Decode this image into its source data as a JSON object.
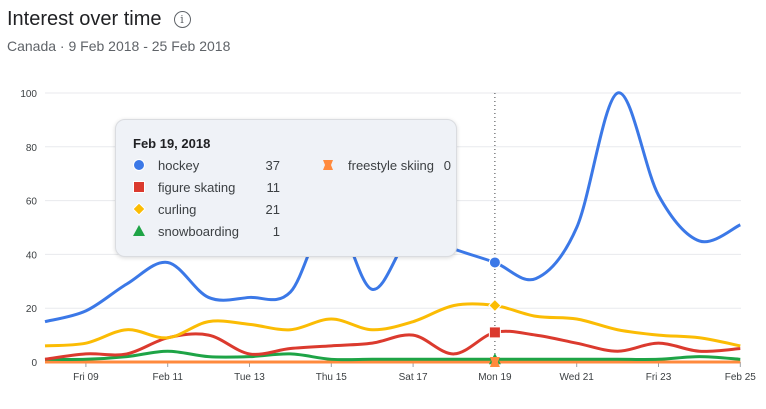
{
  "header": {
    "title": "Interest over time",
    "info_icon": "info-icon",
    "subtitle": "Canada · 9 Feb 2018 - 25 Feb 2018"
  },
  "tooltip": {
    "date": "Feb 19, 2018",
    "items": [
      {
        "label": "hockey",
        "value": "37",
        "marker": "circle",
        "color": "#3b78e7"
      },
      {
        "label": "figure skating",
        "value": "11",
        "marker": "square",
        "color": "#db3a2e"
      },
      {
        "label": "curling",
        "value": "21",
        "marker": "diamond",
        "color": "#fbbc04"
      },
      {
        "label": "snowboarding",
        "value": "1",
        "marker": "triangle",
        "color": "#1ea446"
      },
      {
        "label": "freestyle skiing",
        "value": "0",
        "marker": "bowtie",
        "color": "#ff8a3d"
      }
    ]
  },
  "chart_data": {
    "type": "line",
    "x": [
      "Feb 8",
      "Feb 9",
      "Feb 10",
      "Feb 11",
      "Feb 12",
      "Feb 13",
      "Feb 14",
      "Feb 15",
      "Feb 16",
      "Feb 17",
      "Feb 18",
      "Feb 19",
      "Feb 20",
      "Feb 21",
      "Feb 22",
      "Feb 23",
      "Feb 24",
      "Feb 25"
    ],
    "x_tick_labels": [
      "Fri 09",
      "Feb 11",
      "Tue 13",
      "Thu 15",
      "Sat 17",
      "Mon 19",
      "Wed 21",
      "Fri 23",
      "Feb 25"
    ],
    "y_tick_labels": [
      "0",
      "20",
      "40",
      "60",
      "80",
      "100"
    ],
    "ylim": [
      0,
      100
    ],
    "grid": true,
    "highlighted_x": "Feb 19",
    "series": [
      {
        "name": "hockey",
        "color": "#3b78e7",
        "values": [
          15,
          19,
          29,
          37,
          24,
          24,
          26,
          55,
          27,
          48,
          42,
          37,
          31,
          50,
          100,
          62,
          45,
          51
        ]
      },
      {
        "name": "curling",
        "color": "#fbbc04",
        "values": [
          6,
          7,
          12,
          9,
          15,
          14,
          12,
          16,
          12,
          15,
          21,
          21,
          17,
          16,
          12,
          10,
          9,
          6
        ]
      },
      {
        "name": "figure skating",
        "color": "#db3a2e",
        "values": [
          1,
          3,
          3,
          9,
          10,
          3,
          5,
          6,
          7,
          10,
          3,
          11,
          10,
          7,
          4,
          7,
          4,
          5
        ]
      },
      {
        "name": "snowboarding",
        "color": "#1ea446",
        "values": [
          1,
          1,
          2,
          4,
          2,
          2,
          3,
          1,
          1,
          1,
          1,
          1,
          1,
          1,
          1,
          1,
          2,
          1
        ]
      },
      {
        "name": "freestyle skiing",
        "color": "#ff8a3d",
        "values": [
          0,
          0,
          0,
          0,
          0,
          0,
          0,
          0,
          0,
          0,
          0,
          0,
          0,
          0,
          0,
          0,
          0,
          0
        ]
      }
    ]
  }
}
